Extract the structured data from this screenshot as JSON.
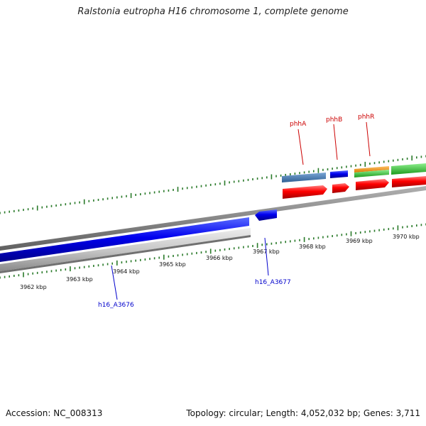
{
  "title": "Ralstonia eutropha H16 chromosome 1, complete genome",
  "footer": {
    "accession": "Accession: NC_008313",
    "info": "Topology: circular; Length: 4,052,032 bp; Genes: 3,711"
  },
  "tick_labels": [
    "3962 kbp",
    "3963 kbp",
    "3964 kbp",
    "3965 kbp",
    "3966 kbp",
    "3967 kbp",
    "3968 kbp",
    "3969 kbp",
    "3970 kbp"
  ],
  "genes": [
    {
      "name": "phhA",
      "color": "#cc0000"
    },
    {
      "name": "phhB",
      "color": "#cc0000"
    },
    {
      "name": "phhR",
      "color": "#cc0000"
    },
    {
      "name": "h16_A3676",
      "color": "#0000cc"
    },
    {
      "name": "h16_A3677",
      "color": "#0000cc"
    }
  ],
  "colors": {
    "cds_forward": "#ff0000",
    "cds_reverse": "#0000ee",
    "gc_track": "#c8c8c8",
    "backbone": "#808080",
    "tick": "#2a7a2a",
    "steelblue_feature": "#4a7fb5",
    "orange_feature": "#ff9900",
    "green_feature": "#33cc33"
  }
}
